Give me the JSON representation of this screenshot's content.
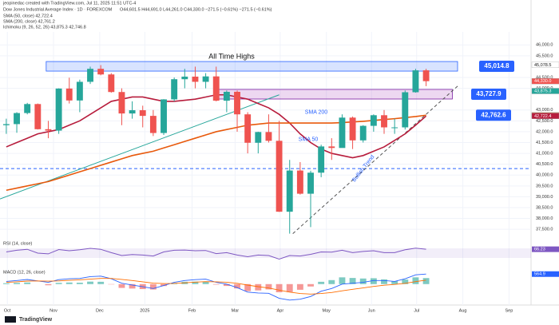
{
  "chart_data": {
    "type": "candlestick",
    "credit": "jeopinedac created with TradingView.com, Jul 11, 2025 11:51 UTC-4",
    "title": "Dow Jones Industrial Average Index · 1D · FOREXCOM",
    "subtitle": "O44,601.5 H44,691.0 L44,261.0 C44,330.0 −271.5 (−0.61%) −271.5 (−0.61%)",
    "legend_lines": [
      "SMA (50, close) 42,722.4",
      "SMA (200, close) 42,761.2",
      "Ichimoku (9, 26, 52, 26) 43,875.3 42,746.8"
    ],
    "brand": "TradingView",
    "categories": [
      null,
      null,
      null,
      null,
      null,
      null,
      null,
      null,
      null,
      null,
      null,
      null,
      null,
      null,
      null,
      null,
      null,
      null,
      null,
      null,
      null,
      null,
      null,
      null,
      null,
      null,
      null,
      null,
      null,
      null,
      null,
      null,
      null,
      null,
      null,
      null,
      null,
      null,
      null,
      null,
      null
    ],
    "open": [
      42300,
      42350,
      42860,
      43275,
      42115,
      42050,
      43990,
      43440,
      44300,
      44900,
      44640,
      43830,
      42840,
      42990,
      42730,
      41940,
      43490,
      44420,
      44540,
      44300,
      44550,
      43430,
      43840,
      42800,
      41490,
      41985,
      41580,
      38310,
      40210,
      39140,
      40110,
      41320,
      41250,
      42650,
      41600,
      42270,
      42760,
      42200,
      42200,
      43820,
      44830
    ],
    "high": [
      42600,
      42900,
      43330,
      43300,
      42500,
      44000,
      44490,
      44400,
      45000,
      45070,
      44700,
      44000,
      43400,
      43200,
      43000,
      43500,
      44500,
      44900,
      45000,
      44700,
      45000,
      43900,
      43900,
      42900,
      42000,
      42800,
      42500,
      40700,
      40600,
      40200,
      41400,
      41700,
      42800,
      42700,
      42300,
      42800,
      43000,
      42600,
      43900,
      44900,
      44900
    ],
    "low": [
      41900,
      41950,
      42800,
      42100,
      41700,
      41900,
      43300,
      42900,
      44200,
      44600,
      43800,
      42300,
      42600,
      42200,
      41800,
      41850,
      43400,
      44000,
      44000,
      44000,
      43400,
      42900,
      42000,
      41000,
      41000,
      41500,
      38300,
      37300,
      39100,
      37600,
      39900,
      40700,
      41300,
      41200,
      41500,
      42000,
      41900,
      41900,
      42100,
      43800,
      44100
    ],
    "close": [
      42350,
      42860,
      43275,
      42115,
      42050,
      43990,
      43440,
      44300,
      44900,
      44640,
      43830,
      42840,
      42990,
      42730,
      41940,
      43490,
      44420,
      44540,
      44300,
      44550,
      43430,
      43840,
      42800,
      41490,
      41985,
      41580,
      38310,
      40210,
      39140,
      40110,
      41320,
      41250,
      42650,
      41600,
      42270,
      42760,
      42200,
      42200,
      43820,
      44830,
      44330
    ],
    "up_color": "#26a69a",
    "down_color": "#ef5350",
    "overlays": [
      {
        "name": "SMA 50",
        "color": "#b71c3c",
        "values": [
          41300,
          41500,
          41700,
          41900,
          42000,
          42100,
          42300,
          42500,
          42800,
          43100,
          43400,
          43500,
          43600,
          43600,
          43500,
          43400,
          43400,
          43450,
          43500,
          43600,
          43700,
          43700,
          43600,
          43500,
          43300,
          43100,
          42800,
          42400,
          41900,
          41500,
          41200,
          41000,
          40900,
          40800,
          40900,
          41100,
          41300,
          41600,
          41900,
          42300,
          42722.4
        ]
      },
      {
        "name": "SMA 200",
        "color": "#e8590c",
        "values": [
          39300,
          39400,
          39500,
          39600,
          39700,
          39850,
          40000,
          40150,
          40300,
          40450,
          40600,
          40750,
          40900,
          41000,
          41100,
          41250,
          41400,
          41550,
          41700,
          41850,
          42000,
          42100,
          42200,
          42300,
          42350,
          42400,
          42400,
          42400,
          42400,
          42400,
          42400,
          42400,
          42420,
          42450,
          42480,
          42520,
          42560,
          42600,
          42650,
          42700,
          42761.2
        ]
      }
    ],
    "ylim": [
      37100,
      46600
    ],
    "yticks": [
      {
        "value": 37500,
        "label": "37,500.0"
      },
      {
        "value": 38000,
        "label": "38,000.0"
      },
      {
        "value": 38500,
        "label": "38,500.0"
      },
      {
        "value": 39000,
        "label": "39,000.0"
      },
      {
        "value": 39500,
        "label": "39,500.0"
      },
      {
        "value": 40000,
        "label": "40,000.0"
      },
      {
        "value": 40500,
        "label": "40,500.0"
      },
      {
        "value": 41000,
        "label": "41,000.0"
      },
      {
        "value": 41500,
        "label": "41,500.0"
      },
      {
        "value": 42000,
        "label": "42,000.0"
      },
      {
        "value": 42500,
        "label": "42,500.0"
      },
      {
        "value": 43000,
        "label": "43,000.0"
      },
      {
        "value": 44000,
        "label": "44,000.0"
      },
      {
        "value": 44500,
        "label": "44,500.0"
      },
      {
        "value": 45500,
        "label": "45,500.0"
      },
      {
        "value": 46000,
        "label": "46,000.0"
      }
    ],
    "xlim": [
      -0.6,
      50
    ],
    "xticks": [
      {
        "value": 0.1,
        "label": "Oct"
      },
      {
        "value": 4.5,
        "label": "Nov"
      },
      {
        "value": 8.9,
        "label": "Dec"
      },
      {
        "value": 13.2,
        "label": "2025"
      },
      {
        "value": 17.7,
        "label": "Feb"
      },
      {
        "value": 21.8,
        "label": "Mar"
      },
      {
        "value": 26.1,
        "label": "Apr"
      },
      {
        "value": 30.5,
        "label": "May"
      },
      {
        "value": 34.8,
        "label": "Jun"
      },
      {
        "value": 39.1,
        "label": "Jul"
      },
      {
        "value": 43.5,
        "label": "Aug"
      },
      {
        "value": 47.9,
        "label": "Sep"
      }
    ],
    "price_tags": [
      {
        "value": 45078.5,
        "label": "45,078.5",
        "color": "#ffffff"
      },
      {
        "value": 44330,
        "label": "44,330.0",
        "color": "#ef5350"
      },
      {
        "value": 43875.3,
        "label": "43,875.3",
        "color": "#26a69a"
      },
      {
        "value": 42761.2,
        "label": "42,761.2",
        "color": "#f57c00"
      },
      {
        "value": 42746.8,
        "label": "42,746.8",
        "color": "#e53935"
      },
      {
        "value": 42722.4,
        "label": "42,722.4",
        "color": "#b71c3c"
      }
    ],
    "levels": [
      {
        "value": 45014.8,
        "label": "45,014.8"
      },
      {
        "value": 43727.9,
        "label": "43,727.9"
      },
      {
        "value": 42762.6,
        "label": "42,762.6"
      }
    ],
    "support_line": 40300,
    "trend_lines": [
      {
        "points": [
          [
            -0.6,
            38900
          ],
          [
            26,
            43700
          ]
        ],
        "color": "#26a69a"
      },
      {
        "points": [
          [
            27.3,
            37300
          ],
          [
            43,
            44100
          ]
        ],
        "color": "#555555"
      }
    ],
    "annotations": [
      "All Time Highs",
      "SMA 200",
      "SMA 50",
      "Bullish Trend"
    ],
    "rsi": {
      "title": "RSI (14, close)",
      "color": "#7e57c2",
      "values": [
        55,
        62,
        66,
        50,
        47,
        65,
        60,
        64,
        70,
        66,
        52,
        40,
        44,
        42,
        38,
        55,
        62,
        63,
        60,
        61,
        48,
        52,
        42,
        35,
        42,
        40,
        25,
        40,
        38,
        45,
        55,
        54,
        62,
        52,
        57,
        60,
        52,
        52,
        64,
        71,
        66.23
      ],
      "ylim": [
        0,
        100
      ],
      "band": [
        30,
        70
      ],
      "tag": {
        "value": 66.23,
        "label": "66.23"
      }
    },
    "macd": {
      "title": "MACD (12, 26, close)",
      "macd_color": "#2962ff",
      "signal_color": "#ff6d00",
      "macd": [
        150,
        200,
        260,
        180,
        100,
        250,
        300,
        320,
        420,
        450,
        300,
        50,
        -50,
        -150,
        -250,
        -80,
        100,
        200,
        250,
        280,
        100,
        0,
        -200,
        -450,
        -500,
        -520,
        -800,
        -900,
        -850,
        -700,
        -400,
        -250,
        0,
        50,
        100,
        200,
        200,
        150,
        300,
        520,
        564.9
      ],
      "signal": [
        100,
        130,
        170,
        180,
        165,
        180,
        210,
        240,
        280,
        320,
        320,
        265,
        200,
        130,
        55,
        30,
        40,
        70,
        110,
        140,
        130,
        105,
        45,
        -55,
        -145,
        -220,
        -340,
        -450,
        -530,
        -565,
        -530,
        -475,
        -380,
        -295,
        -215,
        -130,
        -65,
        -20,
        45,
        140,
        225
      ],
      "ylim": [
        -1000,
        800
      ],
      "tag": {
        "value": 564.9,
        "label": "564.9"
      }
    }
  }
}
